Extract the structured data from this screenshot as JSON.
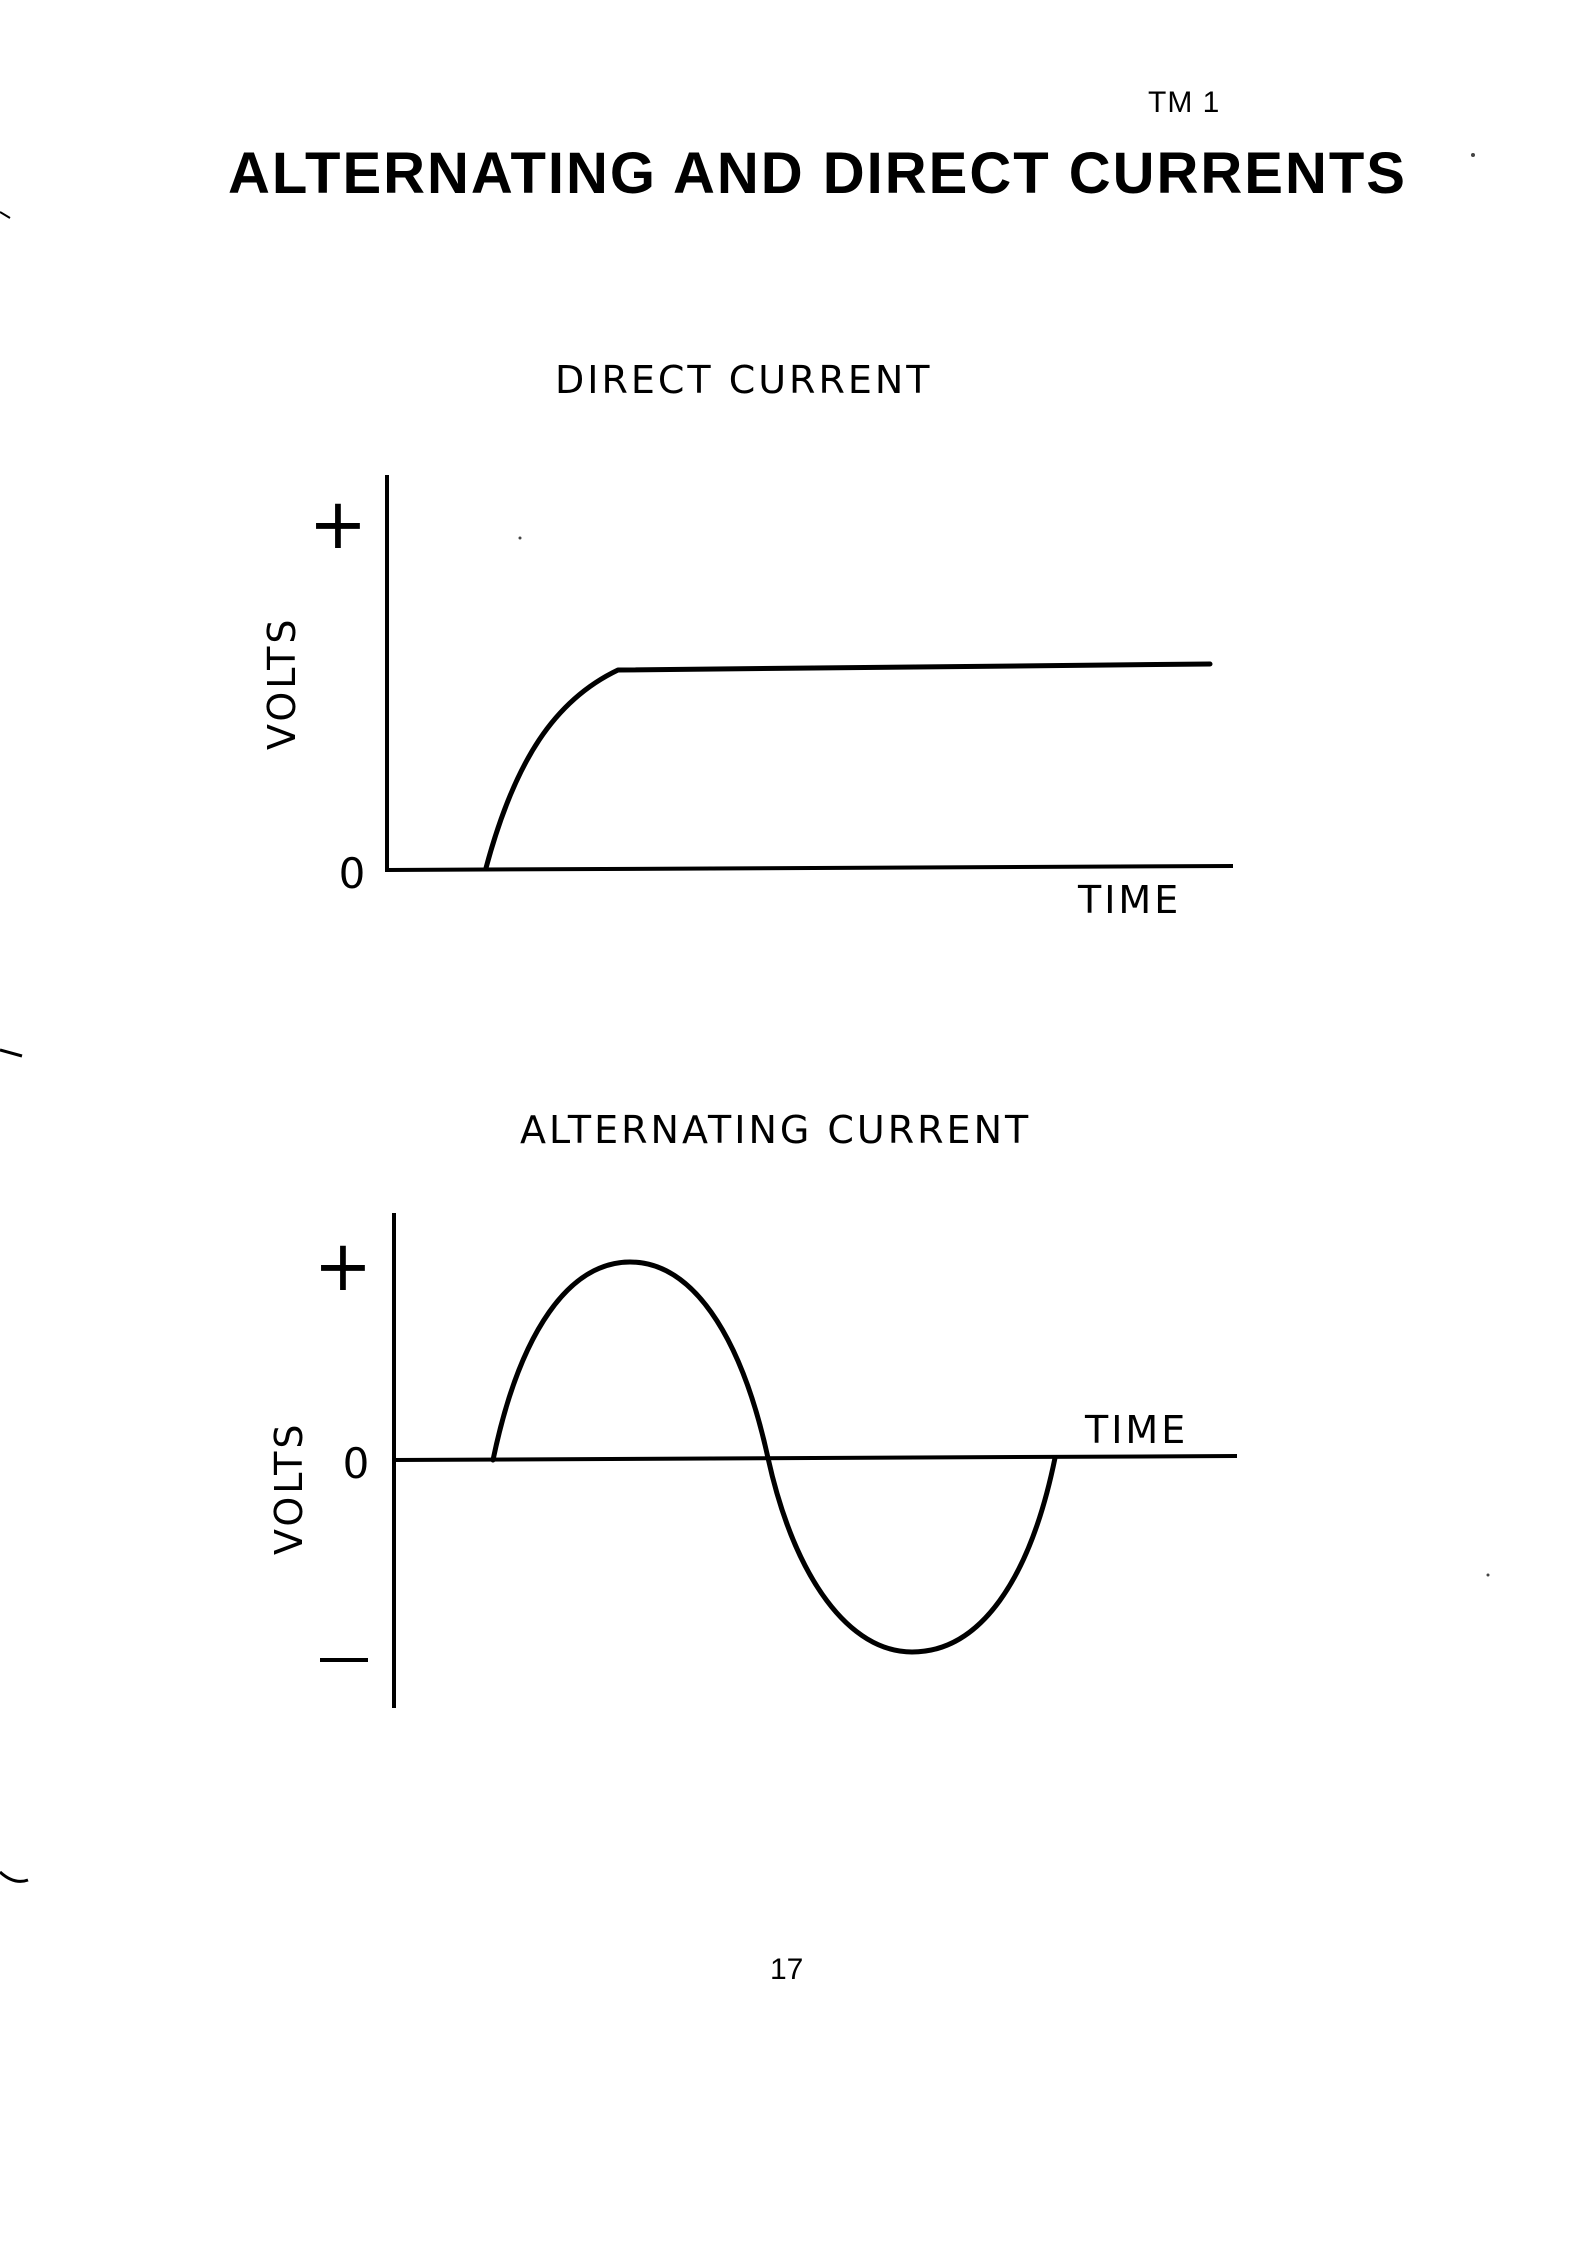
{
  "header": {
    "page_label": "TM 1",
    "title": "ALTERNATING  AND  DIRECT  CURRENTS"
  },
  "diagrams": {
    "dc": {
      "title": "DIRECT CURRENT",
      "y_label": "VOLTS",
      "x_label": "TIME",
      "zero_label": "0",
      "plus_label": "+"
    },
    "ac": {
      "title": "ALTERNATING CURRENT",
      "y_label": "VOLTS",
      "x_label": "TIME",
      "zero_label": "0",
      "plus_label": "+",
      "minus_label": "−"
    }
  },
  "footer": {
    "page_number": "17"
  }
}
